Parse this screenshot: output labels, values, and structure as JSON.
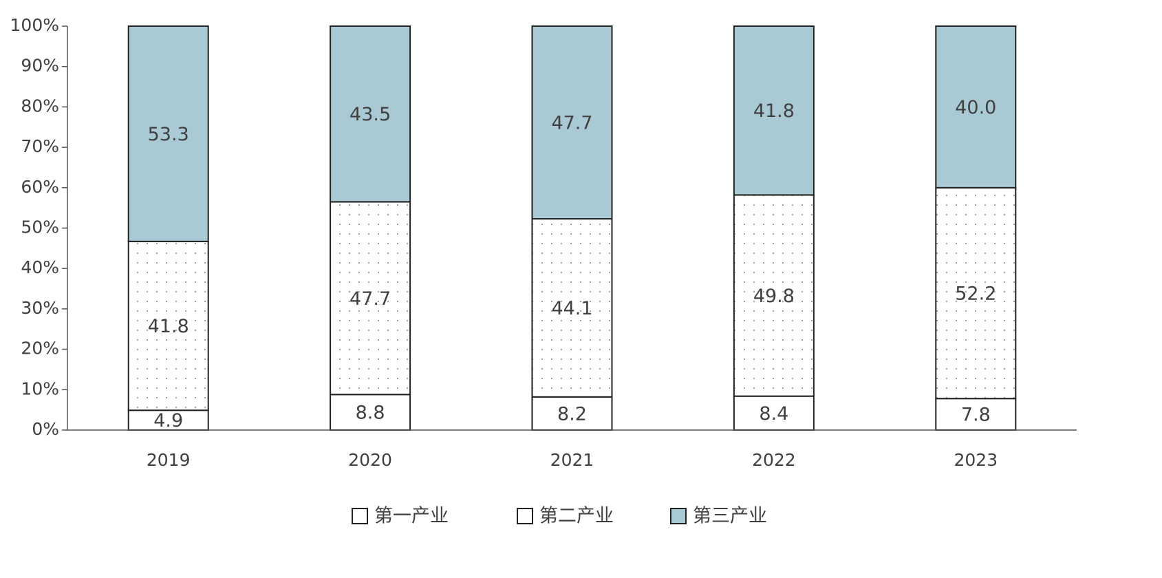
{
  "chart_data": {
    "type": "stacked-bar",
    "categories": [
      "2019",
      "2020",
      "2021",
      "2022",
      "2023"
    ],
    "series": [
      {
        "name": "第一产业",
        "color": "#ffffff",
        "values": [
          4.9,
          8.8,
          8.2,
          8.4,
          7.8
        ]
      },
      {
        "name": "第二产业",
        "color": "#ffffff",
        "pattern": "dots",
        "values": [
          41.8,
          47.7,
          44.1,
          49.8,
          52.2
        ]
      },
      {
        "name": "第三产业",
        "color": "#a9c9d5",
        "values": [
          53.3,
          43.5,
          47.7,
          41.8,
          40.0
        ],
        "value_labels": [
          "53.3",
          "43.5",
          "47.7",
          "41.8",
          "40.0"
        ]
      }
    ],
    "ylim": [
      0,
      100
    ],
    "yticks": [
      {
        "value": 0,
        "label": "0%"
      },
      {
        "value": 10,
        "label": "10%"
      },
      {
        "value": 20,
        "label": "20%"
      },
      {
        "value": 30,
        "label": "30%"
      },
      {
        "value": 40,
        "label": "40%"
      },
      {
        "value": 50,
        "label": "50%"
      },
      {
        "value": 60,
        "label": "60%"
      },
      {
        "value": 70,
        "label": "70%"
      },
      {
        "value": 80,
        "label": "80%"
      },
      {
        "value": 90,
        "label": "90%"
      },
      {
        "value": 100,
        "label": "100%"
      }
    ],
    "legend": "bottom"
  }
}
